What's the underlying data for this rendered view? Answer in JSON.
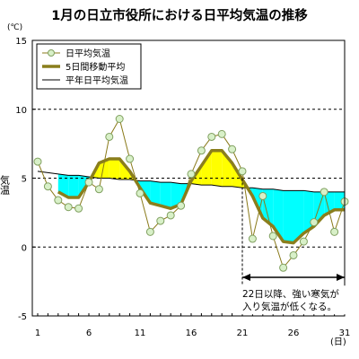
{
  "chart_data": {
    "type": "line",
    "title": "1月の日立市役所における日平均気温の推移",
    "unit_top": "(℃)",
    "ylabel": "気温",
    "x_unit": "(日)",
    "xlim": [
      1,
      31
    ],
    "ylim": [
      -5,
      15
    ],
    "x_ticks": [
      1,
      6,
      11,
      16,
      21,
      26,
      31
    ],
    "y_ticks": [
      -5,
      0,
      5,
      10,
      15
    ],
    "grid": "horizontal dashed at 5, 10",
    "legend_position": "top-left",
    "x": [
      1,
      2,
      3,
      4,
      5,
      6,
      7,
      8,
      9,
      10,
      11,
      12,
      13,
      14,
      15,
      16,
      17,
      18,
      19,
      20,
      21,
      22,
      23,
      24,
      25,
      26,
      27,
      28,
      29,
      30,
      31
    ],
    "series": [
      {
        "name": "日平均気温",
        "style": "line-with-open-circles",
        "color": "#8a7a1a",
        "marker_fill": "#d8f0c8",
        "marker_stroke": "#80a060",
        "values": [
          6.2,
          4.4,
          3.4,
          2.9,
          2.8,
          4.7,
          4.2,
          8.0,
          9.3,
          6.4,
          3.9,
          1.1,
          1.9,
          2.3,
          3.0,
          5.3,
          7.0,
          8.0,
          8.2,
          7.1,
          5.5,
          0.6,
          3.7,
          0.8,
          -1.5,
          -0.6,
          0.4,
          1.8,
          4.0,
          1.1,
          3.3
        ]
      },
      {
        "name": "5日間移動平均",
        "style": "thick-line",
        "color": "#8a7e1c",
        "values": [
          null,
          null,
          4.0,
          3.6,
          3.6,
          4.7,
          6.1,
          6.4,
          6.4,
          5.5,
          4.3,
          3.2,
          3.0,
          2.8,
          3.1,
          4.8,
          5.9,
          7.0,
          7.0,
          6.1,
          4.9,
          3.7,
          2.1,
          1.5,
          0.4,
          0.3,
          1.0,
          1.5,
          2.3,
          2.7,
          2.7
        ]
      },
      {
        "name": "平年日平均気温",
        "style": "thin-line",
        "color": "#000000",
        "values": [
          5.5,
          5.4,
          5.3,
          5.2,
          5.2,
          5.1,
          5.0,
          5.0,
          4.9,
          4.9,
          4.8,
          4.8,
          4.7,
          4.7,
          4.6,
          4.6,
          4.5,
          4.5,
          4.4,
          4.4,
          4.3,
          4.3,
          4.2,
          4.2,
          4.1,
          4.1,
          4.1,
          4.0,
          4.0,
          4.0,
          4.0
        ]
      }
    ],
    "fills": {
      "warmer": "#ffff00",
      "colder": "#00ffff"
    },
    "annotation": {
      "text_line1": "22日以降、強い寒気が",
      "text_line2": "入り気温が低くなる。",
      "x_start": 21,
      "x_end": 31
    }
  }
}
